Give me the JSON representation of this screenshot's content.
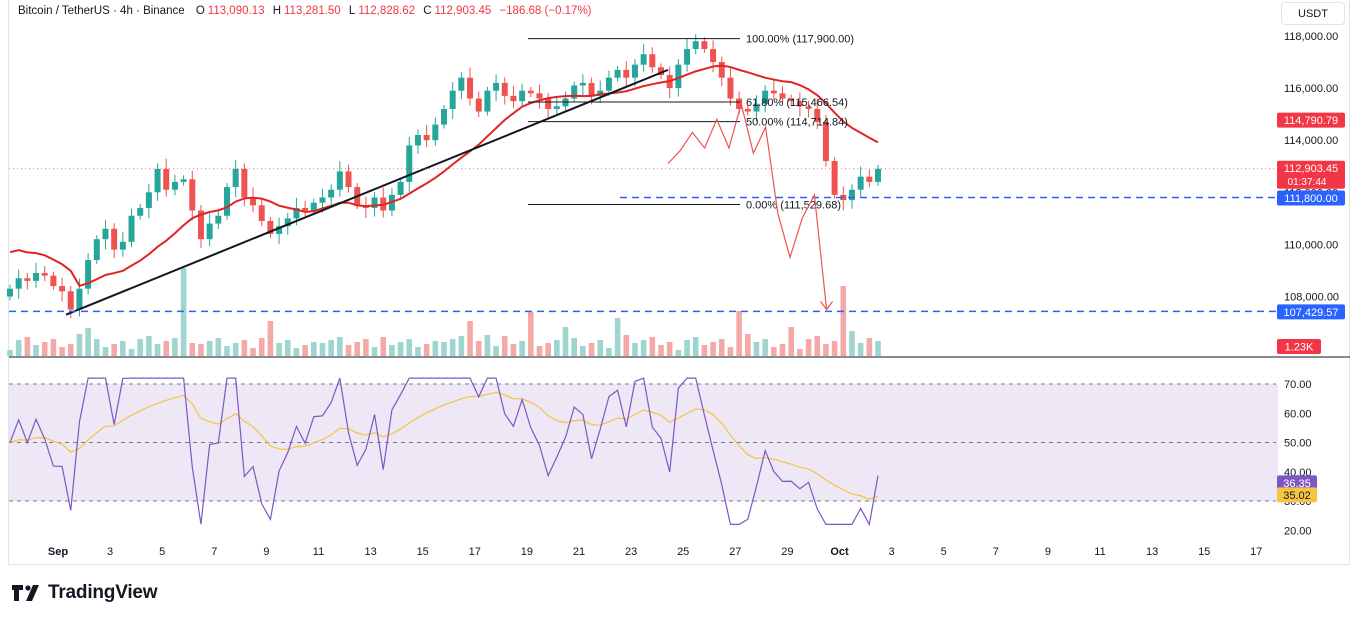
{
  "header": {
    "symbol": "Bitcoin / TetherUS · 4h · Binance",
    "open_label": "O",
    "open": "113,090.13",
    "high_label": "H",
    "high": "113,281.50",
    "low_label": "L",
    "low": "112,828.62",
    "close_label": "C",
    "close": "112,903.45",
    "change": "−186.68 (−0.17%)"
  },
  "currency_button": "USDT",
  "brand": "TradingView",
  "colors": {
    "up": "#26a69a",
    "down": "#ef5350",
    "ma": "#e02424",
    "level_blue": "#2962ff",
    "rsi": "#7e57c2",
    "rsi_ma": "#f4c542",
    "rsi_band": "#ede7f6"
  },
  "chart_data": [
    {
      "type": "candlestick",
      "timeframe": "4h",
      "y_range": [
        107000,
        118300
      ],
      "y_ticks": [
        "118,000.00",
        "116,000.00",
        "114,000.00",
        "112,000.00",
        "110,000.00",
        "108,000.00"
      ],
      "x_ticks": [
        "Sep",
        "3",
        "5",
        "7",
        "9",
        "11",
        "13",
        "15",
        "17",
        "19",
        "21",
        "23",
        "25",
        "27",
        "29",
        "Oct",
        "3",
        "5",
        "7",
        "9",
        "11",
        "13",
        "15",
        "17"
      ],
      "closes": [
        108300,
        108700,
        108600,
        108900,
        108800,
        108400,
        108200,
        107500,
        108300,
        109400,
        110200,
        110600,
        109800,
        110100,
        111100,
        111400,
        112000,
        112900,
        112100,
        112400,
        112500,
        111300,
        110200,
        110800,
        111100,
        112200,
        112900,
        111800,
        111500,
        110900,
        110400,
        110700,
        111000,
        111400,
        111300,
        111600,
        111800,
        112100,
        112800,
        112200,
        111500,
        111400,
        111800,
        111300,
        111900,
        112400,
        113800,
        114200,
        114000,
        114600,
        115200,
        115900,
        116400,
        115600,
        115100,
        115900,
        116200,
        115700,
        115500,
        115900,
        115800,
        115600,
        115200,
        115300,
        115600,
        116100,
        116200,
        115700,
        115900,
        116400,
        116700,
        116400,
        116900,
        117300,
        116800,
        116500,
        116000,
        116900,
        117500,
        117800,
        117500,
        117000,
        116400,
        115600,
        115200,
        115100,
        115400,
        115900,
        115800,
        115600,
        115500,
        115300,
        115200,
        114700,
        113200,
        111900,
        111700,
        112100,
        112600,
        112400,
        112903
      ],
      "ma_label": "114,790.79",
      "last_price_label": "112,903.45",
      "countdown": "01:37:44",
      "volume_label": "1.23K",
      "fib_levels": [
        {
          "label": "100.00% (117,900.00)",
          "price": 117900
        },
        {
          "label": "61.80% (115,466.54)",
          "price": 115466.54
        },
        {
          "label": "50.00% (114,714.84)",
          "price": 114714.84
        },
        {
          "label": "0.00% (111,529.68)",
          "price": 111529.68
        }
      ],
      "support_levels": [
        {
          "label": "111,800.00",
          "price": 111800
        },
        {
          "label": "107,429.57",
          "price": 107429.57
        }
      ],
      "projection_path": [
        113100,
        113600,
        114300,
        113700,
        114800,
        113700,
        115400,
        113500,
        114500,
        111200,
        109500,
        111000,
        111900,
        107500
      ]
    },
    {
      "type": "line",
      "name": "RSI",
      "y_range": [
        18,
        74
      ],
      "y_ticks": [
        "70.00",
        "60.00",
        "50.00",
        "40.00",
        "30.00",
        "20.00"
      ],
      "band": [
        30,
        70
      ],
      "rsi_label": "36.35",
      "rsi_ma_label": "35.02"
    }
  ]
}
